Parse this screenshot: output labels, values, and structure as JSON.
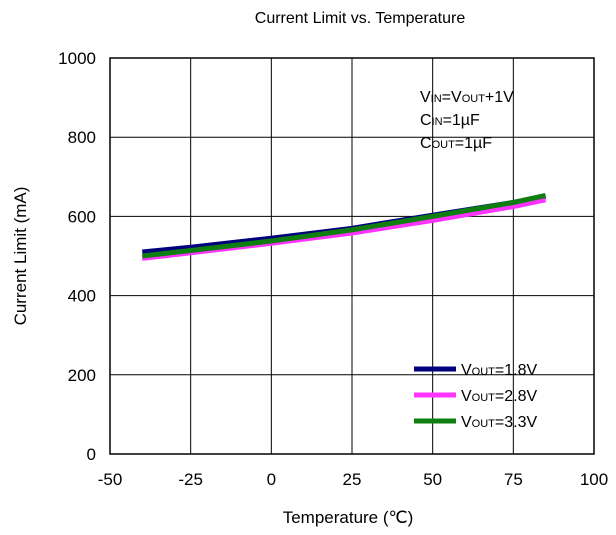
{
  "chart_data": {
    "type": "line",
    "title": "Current Limit vs. Temperature",
    "xlabel": "Temperature (℃)",
    "ylabel": "Current Limit (mA)",
    "xlim": [
      -50,
      100
    ],
    "ylim": [
      0,
      1000
    ],
    "xticks": [
      "-50",
      "-25",
      "0",
      "25",
      "50",
      "75",
      "100"
    ],
    "yticks": [
      "0",
      "200",
      "400",
      "600",
      "800",
      "1000"
    ],
    "grid": true,
    "legend_position": "bottom-right",
    "conditions": [
      {
        "main": "V",
        "sub": "IN",
        "rest": "=V",
        "sub2": "OUT",
        "rest2": "+1V"
      },
      {
        "main": "C",
        "sub": "IN",
        "rest": "=1µF",
        "sub2": "",
        "rest2": ""
      },
      {
        "main": "C",
        "sub": "OUT",
        "rest": "=1µF",
        "sub2": "",
        "rest2": ""
      }
    ],
    "series": [
      {
        "name_main": "V",
        "name_sub": "OUT",
        "name_rest": "=1.8V",
        "color": "#00007f",
        "x": [
          -40,
          -25,
          0,
          25,
          50,
          75,
          85
        ],
        "y": [
          510,
          522,
          545,
          570,
          603,
          635,
          650
        ]
      },
      {
        "name_main": "V",
        "name_sub": "OUT",
        "name_rest": "=2.8V",
        "color": "#ff33ff",
        "x": [
          -40,
          -25,
          0,
          25,
          50,
          75,
          85
        ],
        "y": [
          494,
          508,
          532,
          558,
          590,
          625,
          642
        ]
      },
      {
        "name_main": "V",
        "name_sub": "OUT",
        "name_rest": "=3.3V",
        "color": "#0e7f0e",
        "x": [
          -40,
          -25,
          0,
          25,
          50,
          75,
          85
        ],
        "y": [
          500,
          514,
          538,
          566,
          600,
          635,
          653
        ]
      }
    ]
  }
}
